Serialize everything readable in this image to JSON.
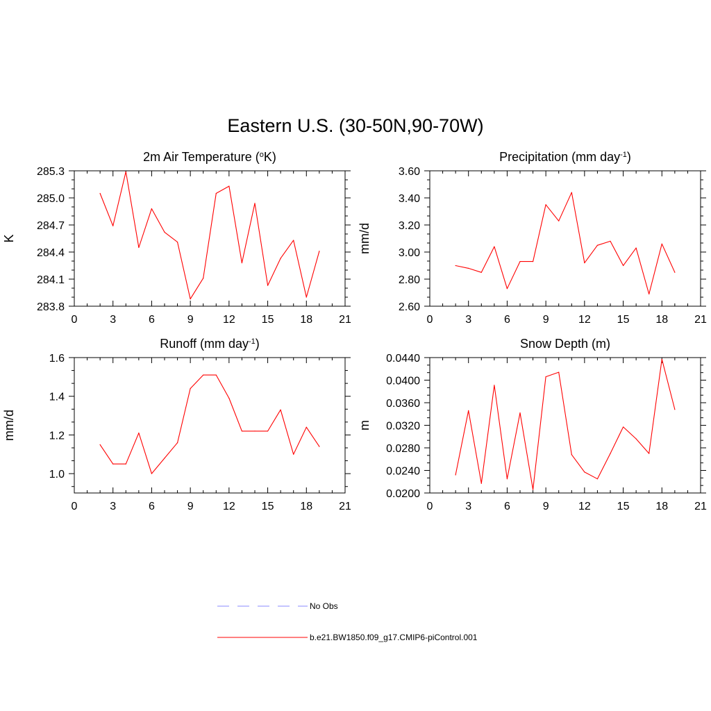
{
  "title": "Eastern U.S. (30-50N,90-70W)",
  "colors": {
    "model": "#ff0000",
    "obs": "#a0a0ff",
    "axis": "#000000"
  },
  "legend": {
    "obs_label": "No Obs",
    "model_label": "b.e21.BW1850.f09_g17.CMIP6-piControl.001"
  },
  "chart_data": [
    {
      "type": "line",
      "title": "2m Air Temperature (oK)",
      "title_parts": [
        {
          "t": "2m Air Temperature ("
        },
        {
          "t": "o",
          "sup": true
        },
        {
          "t": "K)"
        }
      ],
      "ylabel": "K",
      "xlim": [
        0,
        21
      ],
      "ylim": [
        283.8,
        285.3
      ],
      "xticks": [
        0,
        3,
        6,
        9,
        12,
        15,
        18,
        21
      ],
      "yticks": [
        283.8,
        284.1,
        284.4,
        284.7,
        285.0,
        285.3
      ],
      "ytick_labels": [
        "283.8",
        "284.1",
        "284.4",
        "284.7",
        "285.0",
        "285.3"
      ],
      "series": [
        {
          "x": [
            2,
            3,
            4,
            5,
            6,
            7,
            8,
            9,
            10,
            11,
            12,
            13,
            14,
            15,
            16,
            17,
            18,
            19
          ],
          "values": [
            285.05,
            284.69,
            285.29,
            284.45,
            284.88,
            284.62,
            284.51,
            283.88,
            284.11,
            285.05,
            285.13,
            284.28,
            284.94,
            284.03,
            284.33,
            284.53,
            283.9,
            284.41
          ]
        }
      ]
    },
    {
      "type": "line",
      "title": "Precipitation (mm day-1)",
      "title_parts": [
        {
          "t": "Precipitation (mm day"
        },
        {
          "t": "-1",
          "sup": true
        },
        {
          "t": ")"
        }
      ],
      "ylabel": "mm/d",
      "xlim": [
        0,
        21
      ],
      "ylim": [
        2.6,
        3.6
      ],
      "xticks": [
        0,
        3,
        6,
        9,
        12,
        15,
        18,
        21
      ],
      "yticks": [
        2.6,
        2.8,
        3.0,
        3.2,
        3.4,
        3.6
      ],
      "ytick_labels": [
        "2.60",
        "2.80",
        "3.00",
        "3.20",
        "3.40",
        "3.60"
      ],
      "series": [
        {
          "x": [
            2,
            3,
            4,
            5,
            6,
            7,
            8,
            9,
            10,
            11,
            12,
            13,
            14,
            15,
            16,
            17,
            18,
            19
          ],
          "values": [
            2.9,
            2.88,
            2.85,
            3.04,
            2.73,
            2.93,
            2.93,
            3.35,
            3.23,
            3.44,
            2.92,
            3.05,
            3.08,
            2.9,
            3.03,
            2.69,
            3.06,
            2.85
          ]
        }
      ]
    },
    {
      "type": "line",
      "title": "Runoff (mm day-1)",
      "title_parts": [
        {
          "t": "Runoff (mm day"
        },
        {
          "t": "-1",
          "sup": true
        },
        {
          "t": ")"
        }
      ],
      "ylabel": "mm/d",
      "xlim": [
        0,
        21
      ],
      "ylim": [
        0.9,
        1.6
      ],
      "xticks": [
        0,
        3,
        6,
        9,
        12,
        15,
        18,
        21
      ],
      "yticks": [
        1.0,
        1.2,
        1.4,
        1.6
      ],
      "ytick_labels": [
        "1.0",
        "1.2",
        "1.4",
        "1.6"
      ],
      "series": [
        {
          "x": [
            2,
            3,
            4,
            5,
            6,
            7,
            8,
            9,
            10,
            11,
            12,
            13,
            14,
            15,
            16,
            17,
            18,
            19
          ],
          "values": [
            1.15,
            1.05,
            1.05,
            1.21,
            1.0,
            1.08,
            1.16,
            1.44,
            1.51,
            1.51,
            1.39,
            1.22,
            1.22,
            1.22,
            1.33,
            1.1,
            1.24,
            1.14
          ]
        }
      ]
    },
    {
      "type": "line",
      "title": "Snow Depth (m)",
      "title_parts": [
        {
          "t": "Snow Depth (m)"
        }
      ],
      "ylabel": "m",
      "xlim": [
        0,
        21
      ],
      "ylim": [
        0.02,
        0.044
      ],
      "xticks": [
        0,
        3,
        6,
        9,
        12,
        15,
        18,
        21
      ],
      "yticks": [
        0.02,
        0.024,
        0.028,
        0.032,
        0.036,
        0.04,
        0.044
      ],
      "ytick_labels": [
        "0.0200",
        "0.0240",
        "0.0280",
        "0.0320",
        "0.0360",
        "0.0400",
        "0.0440"
      ],
      "series": [
        {
          "x": [
            2,
            3,
            4,
            5,
            6,
            7,
            8,
            9,
            10,
            11,
            12,
            13,
            14,
            15,
            16,
            17,
            18,
            19
          ],
          "values": [
            0.0232,
            0.0346,
            0.0217,
            0.0391,
            0.0225,
            0.0342,
            0.0206,
            0.0406,
            0.0414,
            0.0268,
            0.0237,
            0.0225,
            0.027,
            0.0317,
            0.0296,
            0.027,
            0.0437,
            0.0348
          ]
        }
      ]
    }
  ]
}
